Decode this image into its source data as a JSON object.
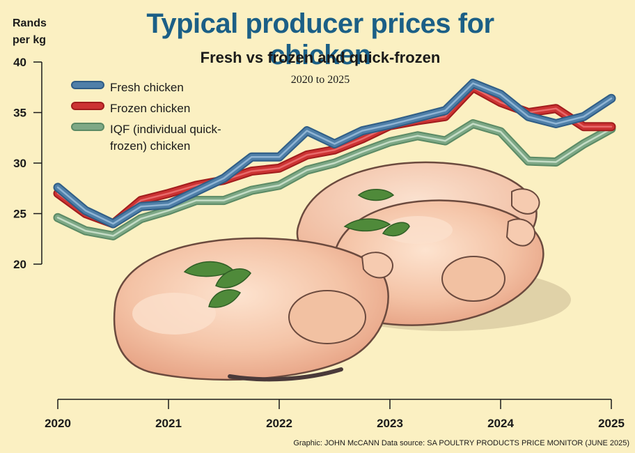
{
  "header": {
    "title": "Typical producer prices for chicken",
    "subtitle": "Fresh vs frozen and quick-frozen",
    "period": "2020 to 2025",
    "ylabel": "Rands per kg"
  },
  "footer": {
    "credit": "Graphic: JOHN McCANN  Data source: SA POULTRY PRODUCTS PRICE MONITOR (JUNE 2025)"
  },
  "illustration": {
    "subject": "roast-chicken-illustration"
  },
  "chart_data": {
    "type": "line",
    "title": "Typical producer prices for chicken",
    "subtitle": "Fresh vs frozen and quick-frozen",
    "ylabel": "Rands per kg",
    "xlabel": "",
    "x": [
      2020.0,
      2020.25,
      2020.5,
      2020.75,
      2021.0,
      2021.25,
      2021.5,
      2021.75,
      2022.0,
      2022.25,
      2022.5,
      2022.75,
      2023.0,
      2023.25,
      2023.5,
      2023.75,
      2024.0,
      2024.25,
      2024.5,
      2024.75,
      2025.0
    ],
    "xticks": [
      "2020",
      "2021",
      "2022",
      "2023",
      "2024",
      "2025"
    ],
    "xtick_values": [
      2020,
      2021,
      2022,
      2023,
      2024,
      2025
    ],
    "yticks": [
      20,
      25,
      30,
      35,
      40
    ],
    "ylim": [
      20,
      40
    ],
    "xlim": [
      2020,
      2025
    ],
    "grid": false,
    "legend": "top-left",
    "series": [
      {
        "name": "Fresh chicken",
        "color": "#4f7fa8",
        "values": [
          27.6,
          25.3,
          24.0,
          25.7,
          25.9,
          27.2,
          28.5,
          30.6,
          30.6,
          33.2,
          31.9,
          33.2,
          33.8,
          34.5,
          35.2,
          37.9,
          36.8,
          34.6,
          33.9,
          34.6,
          36.4
        ]
      },
      {
        "name": "Frozen chicken",
        "color": "#cc3333",
        "values": [
          27.0,
          25.0,
          24.0,
          26.3,
          27.0,
          27.8,
          28.3,
          29.2,
          29.5,
          30.8,
          31.3,
          32.4,
          33.7,
          34.2,
          34.6,
          37.5,
          36.0,
          35.0,
          35.4,
          33.6,
          33.6
        ]
      },
      {
        "name": "IQF (individual quick-frozen) chicken",
        "color": "#7ea886",
        "values": [
          24.6,
          23.3,
          22.8,
          24.5,
          25.3,
          26.3,
          26.3,
          27.3,
          27.8,
          29.3,
          30.0,
          31.1,
          32.1,
          32.7,
          32.2,
          33.9,
          33.1,
          30.2,
          30.1,
          31.9,
          33.4
        ]
      }
    ]
  }
}
